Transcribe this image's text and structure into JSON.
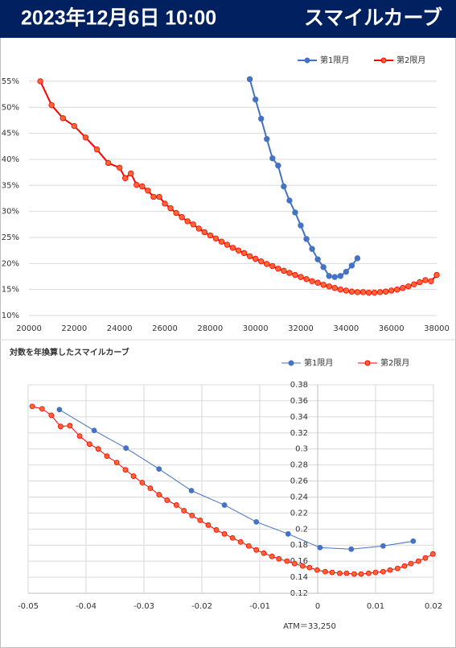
{
  "header": {
    "date": "2023年12月6日 10:00",
    "title": "スマイルカーブ"
  },
  "chart_data": [
    {
      "type": "line",
      "legend": "top-right",
      "xgrid": false,
      "ygrid": true,
      "y_axis_position": "left",
      "line_width": 2,
      "xlim": [
        20000,
        38000
      ],
      "xticks": [
        20000,
        22000,
        24000,
        26000,
        28000,
        30000,
        32000,
        34000,
        36000,
        38000
      ],
      "ylim": [
        10,
        57
      ],
      "yticks": [
        {
          "value": 10,
          "label": "10%"
        },
        {
          "value": 15,
          "label": "15%"
        },
        {
          "value": 20,
          "label": "20%"
        },
        {
          "value": 25,
          "label": "25%"
        },
        {
          "value": 30,
          "label": "30%"
        },
        {
          "value": 35,
          "label": "35%"
        },
        {
          "value": 40,
          "label": "40%"
        },
        {
          "value": 45,
          "label": "45%"
        },
        {
          "value": 50,
          "label": "50%"
        },
        {
          "value": 55,
          "label": "55%"
        }
      ],
      "series": [
        {
          "name": "第1限月",
          "color": "#4472c4",
          "marker_fill": "#4472c4",
          "x": [
            29750,
            30000,
            30250,
            30500,
            30750,
            31000,
            31250,
            31500,
            31750,
            32000,
            32250,
            32500,
            32750,
            33000,
            33250,
            33500,
            33750,
            34000,
            34250,
            34500
          ],
          "values": [
            55.4,
            51.5,
            47.8,
            43.9,
            40.2,
            38.8,
            34.8,
            32.1,
            29.8,
            27.3,
            24.7,
            22.8,
            20.8,
            19.3,
            17.6,
            17.4,
            17.6,
            18.4,
            19.6,
            21.0
          ]
        },
        {
          "name": "第2限月",
          "color": "#ff0000",
          "marker_fill": "#ff6633",
          "x": [
            20500,
            21000,
            21500,
            22000,
            22500,
            23000,
            23500,
            24000,
            24250,
            24500,
            24750,
            25000,
            25250,
            25500,
            25750,
            26000,
            26250,
            26500,
            26750,
            27000,
            27250,
            27500,
            27750,
            28000,
            28250,
            28500,
            28750,
            29000,
            29250,
            29500,
            29750,
            30000,
            30250,
            30500,
            30750,
            31000,
            31250,
            31500,
            31750,
            32000,
            32250,
            32500,
            32750,
            33000,
            33250,
            33500,
            33750,
            34000,
            34250,
            34500,
            34750,
            35000,
            35250,
            35500,
            35750,
            36000,
            36250,
            36500,
            36750,
            37000,
            37250,
            37500,
            37750,
            38000
          ],
          "values": [
            55.0,
            50.4,
            47.9,
            46.4,
            44.2,
            41.9,
            39.3,
            38.4,
            36.4,
            37.3,
            35.1,
            34.8,
            34.0,
            32.8,
            32.8,
            31.5,
            30.6,
            29.7,
            28.9,
            28.1,
            27.5,
            26.7,
            26.0,
            25.4,
            24.8,
            24.2,
            23.6,
            23.0,
            22.5,
            22.0,
            21.4,
            20.9,
            20.4,
            19.9,
            19.5,
            19.0,
            18.6,
            18.2,
            17.8,
            17.4,
            17.0,
            16.6,
            16.3,
            15.9,
            15.6,
            15.3,
            15.0,
            14.8,
            14.6,
            14.5,
            14.5,
            14.4,
            14.4,
            14.5,
            14.6,
            14.8,
            15.0,
            15.3,
            15.6,
            16.0,
            16.4,
            16.8,
            16.6,
            17.8
          ]
        }
      ]
    },
    {
      "type": "line",
      "title": "対数を年換算したスマイルカーブ",
      "annotation": "ATM＝33,250",
      "legend": "top-right",
      "xgrid": true,
      "ygrid": true,
      "y_axis_position": "zero",
      "line_width": 1,
      "xlim": [
        -0.05,
        0.02
      ],
      "xticks": [
        -0.05,
        -0.04,
        -0.03,
        -0.02,
        -0.01,
        0,
        0.01,
        0.02
      ],
      "ylim": [
        0.12,
        0.38
      ],
      "yticks": [
        0.12,
        0.14,
        0.16,
        0.18,
        0.2,
        0.22,
        0.24,
        0.26,
        0.28,
        0.3,
        0.32,
        0.34,
        0.36,
        0.38
      ],
      "series": [
        {
          "name": "第1限月",
          "color": "#4472c4",
          "marker_fill": "#4472c4",
          "x": [
            -0.0446,
            -0.0386,
            -0.0331,
            -0.0274,
            -0.0218,
            -0.0161,
            -0.0106,
            -0.0051,
            0.0004,
            0.0058,
            0.0113,
            0.0165
          ],
          "values": [
            0.349,
            0.323,
            0.301,
            0.275,
            0.248,
            0.23,
            0.209,
            0.194,
            0.177,
            0.175,
            0.179,
            0.185
          ]
        },
        {
          "name": "第2限月",
          "color": "#ff0000",
          "marker_fill": "#ff6633",
          "x": [
            -0.0493,
            -0.0476,
            -0.046,
            -0.0444,
            -0.0428,
            -0.0411,
            -0.0394,
            -0.0379,
            -0.0364,
            -0.0347,
            -0.0332,
            -0.0318,
            -0.0303,
            -0.0289,
            -0.0274,
            -0.026,
            -0.0244,
            -0.0231,
            -0.0217,
            -0.0203,
            -0.0189,
            -0.0175,
            -0.0161,
            -0.0147,
            -0.0133,
            -0.0119,
            -0.0106,
            -0.0093,
            -0.0079,
            -0.0067,
            -0.0053,
            -0.004,
            -0.0026,
            -0.0014,
            -0.0001,
            0.0013,
            0.0025,
            0.0038,
            0.005,
            0.0063,
            0.0075,
            0.0088,
            0.01,
            0.0113,
            0.0125,
            0.0138,
            0.015,
            0.0161,
            0.0174,
            0.0186,
            0.0199
          ],
          "values": [
            0.353,
            0.35,
            0.342,
            0.328,
            0.329,
            0.316,
            0.306,
            0.3,
            0.291,
            0.283,
            0.274,
            0.266,
            0.258,
            0.251,
            0.243,
            0.236,
            0.23,
            0.223,
            0.217,
            0.211,
            0.205,
            0.199,
            0.194,
            0.189,
            0.184,
            0.179,
            0.174,
            0.17,
            0.166,
            0.163,
            0.16,
            0.157,
            0.154,
            0.152,
            0.149,
            0.147,
            0.146,
            0.145,
            0.145,
            0.144,
            0.144,
            0.145,
            0.146,
            0.147,
            0.149,
            0.151,
            0.154,
            0.157,
            0.16,
            0.164,
            0.169
          ]
        }
      ]
    }
  ]
}
